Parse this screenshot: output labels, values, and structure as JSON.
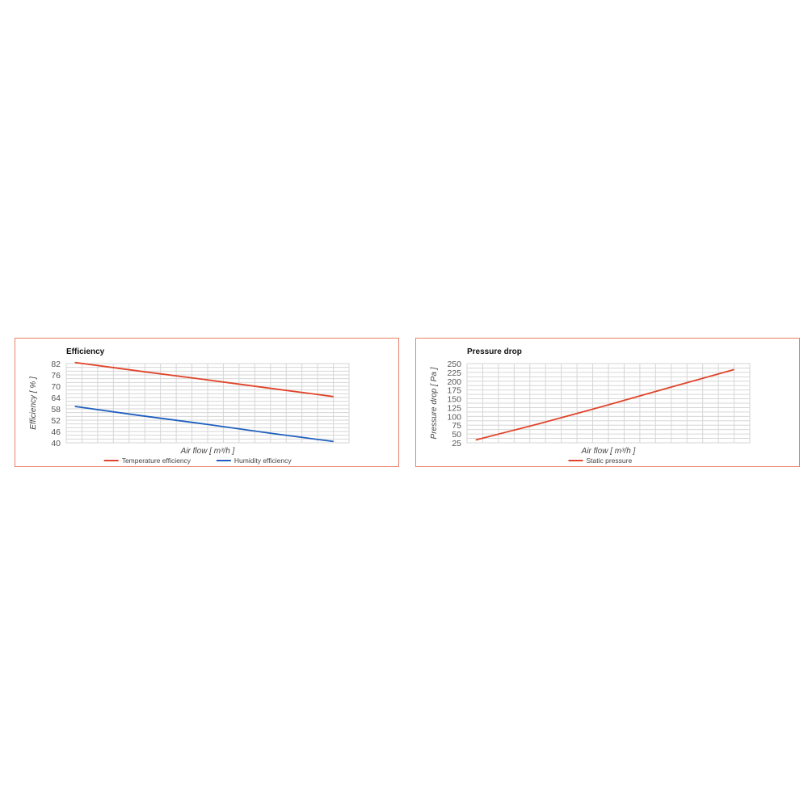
{
  "chart_data": [
    {
      "type": "line",
      "title": "Efficiency",
      "xlabel": "Air flow [ m³/h ]",
      "ylabel": "Efficiency [ % ]",
      "ylim": [
        40,
        82
      ],
      "yticks": [
        82,
        76,
        70,
        64,
        58,
        52,
        46,
        40
      ],
      "grid": true,
      "legend_position": "bottom",
      "series": [
        {
          "name": "Temperature efficiency",
          "color": "#e0442a",
          "values": [
            82.6,
            78.0,
            73.6,
            69.0,
            64.5
          ]
        },
        {
          "name": "Humidity efficiency",
          "color": "#1f5fbf",
          "values": [
            59.3,
            54.5,
            50.0,
            45.2,
            40.7
          ]
        }
      ]
    },
    {
      "type": "line",
      "title": "Pressure drop",
      "xlabel": "Air flow [ m³/h ]",
      "ylabel": "Pressure drop [ Pa ]",
      "ylim": [
        25,
        250
      ],
      "yticks": [
        250,
        225,
        200,
        175,
        150,
        125,
        100,
        75,
        50,
        25
      ],
      "grid": true,
      "legend_position": "bottom",
      "series": [
        {
          "name": "Static pressure",
          "color": "#e0442a",
          "values": [
            33,
            80,
            130,
            182,
            233
          ]
        }
      ]
    }
  ]
}
